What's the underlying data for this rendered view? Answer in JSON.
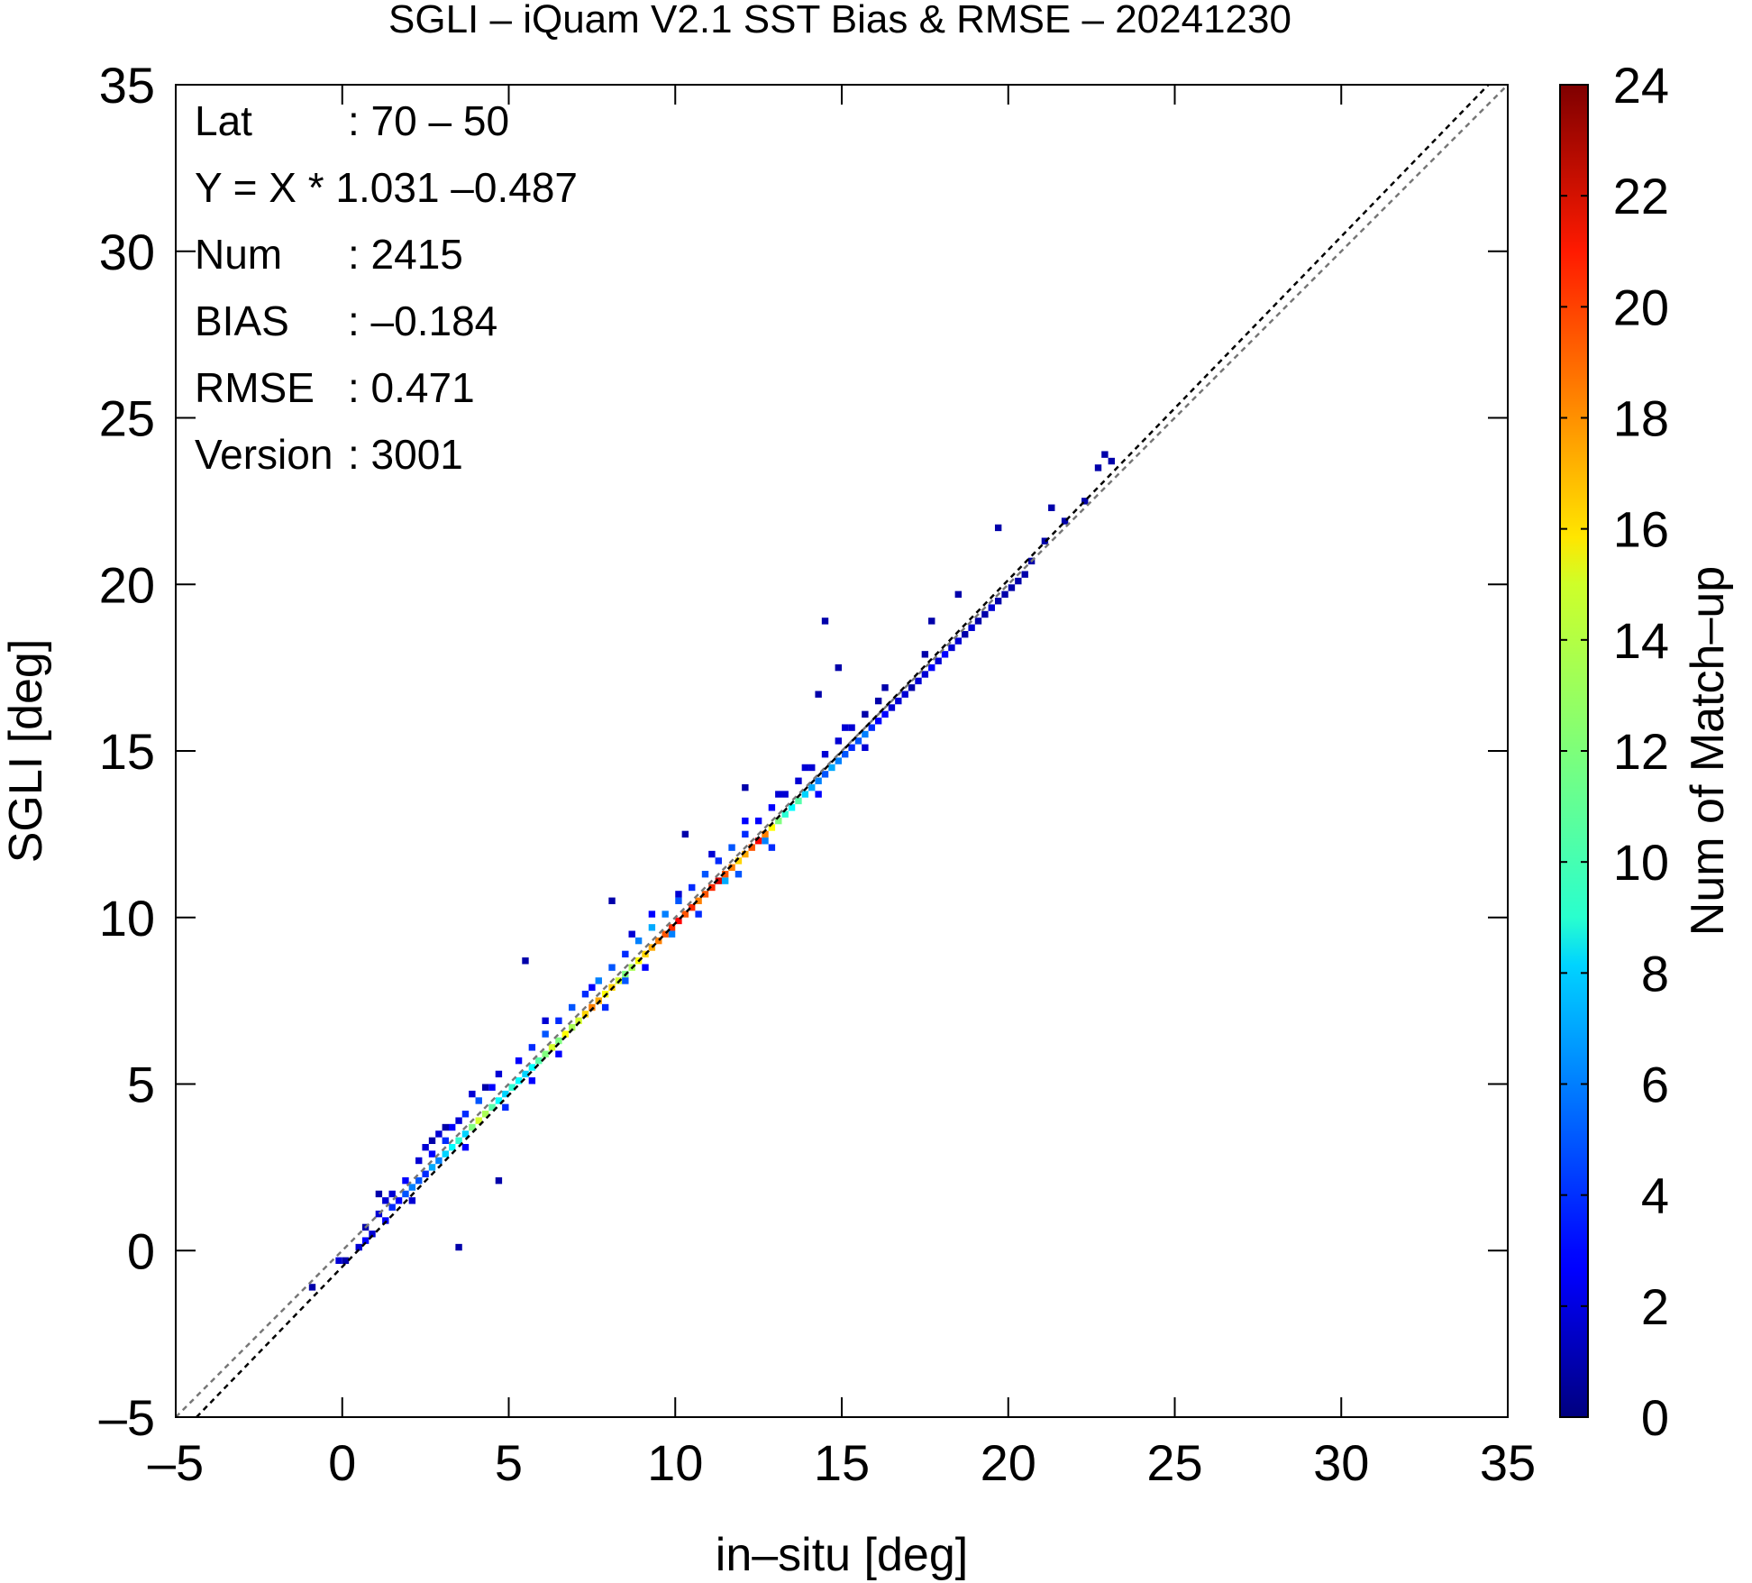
{
  "chart_data": {
    "type": "heatmap",
    "title": "SGLI – iQuam V2.1 SST Bias & RMSE  – 20241230",
    "xlabel": "in–situ [deg]",
    "ylabel": "SGLI [deg]",
    "xlim": [
      -5,
      35
    ],
    "ylim": [
      -5,
      35
    ],
    "xticks": [
      -5,
      0,
      5,
      10,
      15,
      20,
      25,
      30,
      35
    ],
    "yticks": [
      -5,
      0,
      5,
      10,
      15,
      20,
      25,
      30,
      35
    ],
    "xtick_labels": [
      "–5",
      "0",
      "5",
      "10",
      "15",
      "20",
      "25",
      "30",
      "35"
    ],
    "ytick_labels": [
      "–5",
      "0",
      "5",
      "10",
      "15",
      "20",
      "25",
      "30",
      "35"
    ],
    "grid": false,
    "colorbar": {
      "label": "Num of Match–up",
      "range": [
        0,
        24
      ],
      "ticks": [
        0,
        2,
        4,
        6,
        8,
        10,
        12,
        14,
        16,
        18,
        20,
        22,
        24
      ],
      "tick_labels": [
        "0",
        "2",
        "4",
        "6",
        "8",
        "10",
        "12",
        "14",
        "16",
        "18",
        "20",
        "22",
        "24"
      ],
      "colormap": "jet"
    },
    "stats": [
      {
        "name": "Lat",
        "value": ": 70 – 50"
      },
      {
        "name": "Y = X * 1.031 –0.487",
        "value": ""
      },
      {
        "name": "Num",
        "value": ": 2415"
      },
      {
        "name": "BIAS",
        "value": ": –0.184"
      },
      {
        "name": "RMSE",
        "value": ": 0.471"
      },
      {
        "name": "Version",
        "value": ": 3001"
      }
    ],
    "lines": [
      {
        "kind": "one_to_one",
        "slope": 1.0,
        "intercept": 0.0,
        "color": "#777777",
        "dash": true
      },
      {
        "kind": "regression",
        "slope": 1.031,
        "intercept": -0.487,
        "color": "#000000",
        "dash": true
      }
    ],
    "bin_size": 0.2,
    "cells": [
      [
        -1.0,
        -1.2,
        1
      ],
      [
        -0.2,
        -0.4,
        2
      ],
      [
        0.0,
        -0.4,
        1
      ],
      [
        0.4,
        0.0,
        2
      ],
      [
        0.6,
        0.2,
        3
      ],
      [
        0.8,
        0.4,
        2
      ],
      [
        0.6,
        0.6,
        1
      ],
      [
        1.0,
        1.0,
        2
      ],
      [
        1.2,
        0.8,
        3
      ],
      [
        1.4,
        1.2,
        4
      ],
      [
        1.2,
        1.4,
        2
      ],
      [
        1.0,
        1.6,
        1
      ],
      [
        1.6,
        1.4,
        3
      ],
      [
        1.8,
        1.6,
        5
      ],
      [
        1.4,
        1.6,
        2
      ],
      [
        2.0,
        1.8,
        6
      ],
      [
        2.2,
        2.0,
        5
      ],
      [
        1.8,
        2.0,
        3
      ],
      [
        2.4,
        2.2,
        4
      ],
      [
        2.6,
        2.4,
        7
      ],
      [
        2.2,
        2.6,
        2
      ],
      [
        2.8,
        2.6,
        6
      ],
      [
        2.6,
        2.8,
        3
      ],
      [
        2.6,
        3.2,
        1
      ],
      [
        2.4,
        3.0,
        2
      ],
      [
        3.0,
        2.8,
        8
      ],
      [
        3.2,
        3.0,
        9
      ],
      [
        3.0,
        3.2,
        4
      ],
      [
        2.8,
        3.4,
        2
      ],
      [
        3.4,
        3.2,
        10
      ],
      [
        3.6,
        3.4,
        8
      ],
      [
        3.2,
        3.6,
        3
      ],
      [
        3.4,
        3.8,
        2
      ],
      [
        3.8,
        3.6,
        12
      ],
      [
        4.0,
        3.8,
        14
      ],
      [
        3.6,
        4.0,
        4
      ],
      [
        4.2,
        4.0,
        13
      ],
      [
        4.4,
        4.2,
        11
      ],
      [
        4.0,
        4.4,
        5
      ],
      [
        3.8,
        4.6,
        2
      ],
      [
        4.6,
        4.4,
        9
      ],
      [
        4.8,
        4.6,
        8
      ],
      [
        4.4,
        4.8,
        3
      ],
      [
        5.0,
        4.8,
        10
      ],
      [
        5.2,
        5.0,
        9
      ],
      [
        4.6,
        5.2,
        2
      ],
      [
        5.4,
        5.2,
        8
      ],
      [
        5.6,
        5.4,
        9
      ],
      [
        5.2,
        5.6,
        3
      ],
      [
        5.8,
        5.6,
        11
      ],
      [
        6.0,
        5.8,
        12
      ],
      [
        5.6,
        6.0,
        4
      ],
      [
        6.2,
        6.0,
        14
      ],
      [
        6.4,
        6.2,
        12
      ],
      [
        6.0,
        6.4,
        5
      ],
      [
        6.6,
        6.4,
        15
      ],
      [
        6.8,
        6.6,
        13
      ],
      [
        6.4,
        6.8,
        4
      ],
      [
        7.0,
        6.8,
        14
      ],
      [
        7.2,
        7.0,
        16
      ],
      [
        6.8,
        7.2,
        5
      ],
      [
        7.4,
        7.2,
        18
      ],
      [
        7.6,
        7.4,
        17
      ],
      [
        7.2,
        7.6,
        4
      ],
      [
        7.8,
        7.6,
        15
      ],
      [
        8.0,
        7.8,
        16
      ],
      [
        7.6,
        8.0,
        6
      ],
      [
        8.2,
        8.0,
        14
      ],
      [
        8.4,
        8.2,
        12
      ],
      [
        8.0,
        8.4,
        5
      ],
      [
        8.6,
        8.4,
        13
      ],
      [
        8.8,
        8.6,
        15
      ],
      [
        8.4,
        8.8,
        4
      ],
      [
        9.0,
        8.8,
        16
      ],
      [
        9.2,
        9.0,
        17
      ],
      [
        8.8,
        9.2,
        6
      ],
      [
        9.4,
        9.2,
        18
      ],
      [
        9.6,
        9.4,
        19
      ],
      [
        9.2,
        9.6,
        7
      ],
      [
        9.8,
        9.6,
        20
      ],
      [
        10.0,
        9.8,
        21
      ],
      [
        9.6,
        10.0,
        6
      ],
      [
        10.2,
        10.0,
        19
      ],
      [
        10.4,
        10.2,
        20
      ],
      [
        10.0,
        10.4,
        5
      ],
      [
        10.6,
        10.4,
        18
      ],
      [
        10.8,
        10.6,
        19
      ],
      [
        10.4,
        10.8,
        4
      ],
      [
        11.0,
        10.8,
        20
      ],
      [
        11.2,
        11.0,
        22
      ],
      [
        10.8,
        11.2,
        5
      ],
      [
        11.4,
        11.2,
        19
      ],
      [
        11.6,
        11.4,
        18
      ],
      [
        11.2,
        11.6,
        4
      ],
      [
        11.8,
        11.6,
        16
      ],
      [
        12.0,
        11.8,
        17
      ],
      [
        11.6,
        12.0,
        5
      ],
      [
        12.2,
        12.0,
        19
      ],
      [
        12.4,
        12.2,
        21
      ],
      [
        12.0,
        12.4,
        4
      ],
      [
        12.6,
        12.4,
        18
      ],
      [
        12.8,
        12.6,
        15
      ],
      [
        12.4,
        12.8,
        3
      ],
      [
        13.0,
        12.8,
        12
      ],
      [
        13.2,
        13.0,
        10
      ],
      [
        12.8,
        13.2,
        3
      ],
      [
        13.4,
        13.2,
        9
      ],
      [
        13.6,
        13.4,
        11
      ],
      [
        13.2,
        13.6,
        2
      ],
      [
        13.8,
        13.6,
        8
      ],
      [
        14.0,
        13.8,
        7
      ],
      [
        13.6,
        14.0,
        2
      ],
      [
        14.2,
        14.0,
        6
      ],
      [
        14.4,
        14.2,
        5
      ],
      [
        14.0,
        14.4,
        2
      ],
      [
        14.6,
        14.4,
        7
      ],
      [
        14.8,
        14.6,
        6
      ],
      [
        14.4,
        14.8,
        2
      ],
      [
        15.0,
        14.8,
        5
      ],
      [
        15.2,
        15.0,
        4
      ],
      [
        14.8,
        15.2,
        2
      ],
      [
        15.4,
        15.2,
        5
      ],
      [
        15.6,
        15.4,
        6
      ],
      [
        15.2,
        15.6,
        2
      ],
      [
        15.8,
        15.6,
        4
      ],
      [
        16.0,
        15.8,
        3
      ],
      [
        15.6,
        16.0,
        1
      ],
      [
        16.2,
        16.0,
        3
      ],
      [
        16.4,
        16.2,
        2
      ],
      [
        16.0,
        16.4,
        1
      ],
      [
        16.6,
        16.4,
        2
      ],
      [
        16.8,
        16.6,
        2
      ],
      [
        17.0,
        16.8,
        1
      ],
      [
        17.2,
        17.0,
        2
      ],
      [
        17.4,
        17.2,
        2
      ],
      [
        17.6,
        17.4,
        3
      ],
      [
        17.8,
        17.6,
        2
      ],
      [
        18.0,
        17.8,
        3
      ],
      [
        18.2,
        18.0,
        2
      ],
      [
        18.4,
        18.2,
        2
      ],
      [
        18.6,
        18.4,
        1
      ],
      [
        18.8,
        18.6,
        2
      ],
      [
        19.0,
        18.8,
        1
      ],
      [
        19.2,
        19.0,
        1
      ],
      [
        19.4,
        19.2,
        2
      ],
      [
        19.6,
        19.4,
        1
      ],
      [
        19.8,
        19.6,
        1
      ],
      [
        20.0,
        19.8,
        1
      ],
      [
        20.2,
        20.0,
        1
      ],
      [
        20.4,
        20.2,
        1
      ],
      [
        20.6,
        20.6,
        1
      ],
      [
        21.0,
        21.2,
        1
      ],
      [
        21.6,
        21.8,
        1
      ],
      [
        22.2,
        22.4,
        1
      ],
      [
        22.8,
        23.8,
        1
      ],
      [
        23.0,
        23.6,
        1
      ],
      [
        22.6,
        23.4,
        1
      ],
      [
        21.2,
        22.2,
        1
      ],
      [
        19.6,
        21.6,
        1
      ],
      [
        18.4,
        19.6,
        1
      ],
      [
        17.6,
        18.8,
        1
      ],
      [
        14.4,
        18.8,
        1
      ],
      [
        14.2,
        16.6,
        1
      ],
      [
        14.8,
        17.4,
        1
      ],
      [
        12.0,
        13.8,
        1
      ],
      [
        10.2,
        12.4,
        1
      ],
      [
        8.0,
        10.4,
        1
      ],
      [
        5.4,
        8.6,
        1
      ],
      [
        3.4,
        0.0,
        1
      ],
      [
        4.6,
        2.0,
        1
      ],
      [
        3.0,
        3.6,
        1
      ],
      [
        4.2,
        4.8,
        1
      ],
      [
        6.0,
        6.8,
        2
      ],
      [
        7.4,
        7.8,
        3
      ],
      [
        8.6,
        9.4,
        2
      ],
      [
        9.2,
        10.0,
        3
      ],
      [
        10.0,
        10.6,
        2
      ],
      [
        11.0,
        11.8,
        2
      ],
      [
        12.0,
        12.8,
        3
      ],
      [
        13.0,
        13.6,
        2
      ],
      [
        13.8,
        14.4,
        2
      ],
      [
        15.0,
        15.6,
        2
      ],
      [
        16.2,
        16.8,
        1
      ],
      [
        17.4,
        17.8,
        1
      ],
      [
        6.4,
        5.8,
        3
      ],
      [
        7.8,
        7.2,
        4
      ],
      [
        9.0,
        8.4,
        3
      ],
      [
        10.6,
        10.0,
        4
      ],
      [
        11.8,
        11.2,
        5
      ],
      [
        12.8,
        12.0,
        4
      ],
      [
        14.2,
        13.6,
        3
      ],
      [
        15.6,
        15.0,
        2
      ],
      [
        2.0,
        1.4,
        2
      ],
      [
        3.6,
        3.0,
        3
      ],
      [
        4.8,
        4.2,
        4
      ],
      [
        5.6,
        5.0,
        3
      ],
      [
        8.4,
        8.0,
        5
      ],
      [
        9.8,
        9.4,
        6
      ],
      [
        11.4,
        11.0,
        7
      ],
      [
        12.6,
        12.2,
        6
      ]
    ]
  }
}
